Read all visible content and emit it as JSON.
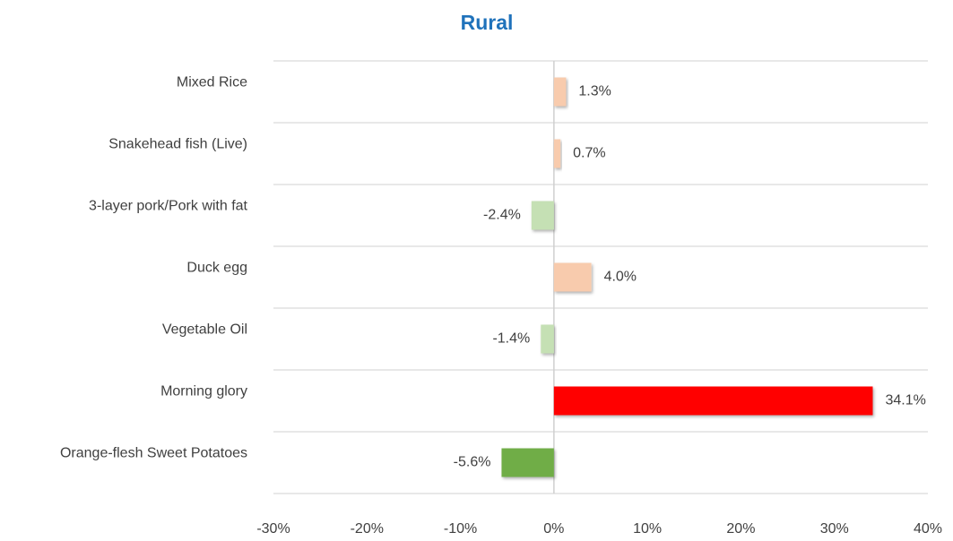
{
  "chart_data": {
    "type": "bar",
    "orientation": "horizontal",
    "title": "Rural",
    "categories": [
      "Mixed Rice",
      "Snakehead fish (Live)",
      "3-layer pork/Pork with fat",
      "Duck egg",
      "Vegetable Oil",
      "Morning glory",
      "Orange-flesh Sweet Potatoes"
    ],
    "values": [
      1.3,
      0.7,
      -2.4,
      4.0,
      -1.4,
      34.1,
      -5.6
    ],
    "value_labels": [
      "1.3%",
      "0.7%",
      "-2.4%",
      "4.0%",
      "-1.4%",
      "34.1%",
      "-5.6%"
    ],
    "colors": [
      "#f8cbad",
      "#f8cbad",
      "#c5e0b4",
      "#f8cbad",
      "#c5e0b4",
      "#ff0000",
      "#70ad47"
    ],
    "xlim": [
      -30,
      40
    ],
    "xticks": [
      {
        "value": -30,
        "label": "-30%"
      },
      {
        "value": -20,
        "label": "-20%"
      },
      {
        "value": -10,
        "label": "-10%"
      },
      {
        "value": 0,
        "label": "0%"
      },
      {
        "value": 10,
        "label": "10%"
      },
      {
        "value": 20,
        "label": "20%"
      },
      {
        "value": 30,
        "label": "30%"
      },
      {
        "value": 40,
        "label": "40%"
      }
    ]
  }
}
